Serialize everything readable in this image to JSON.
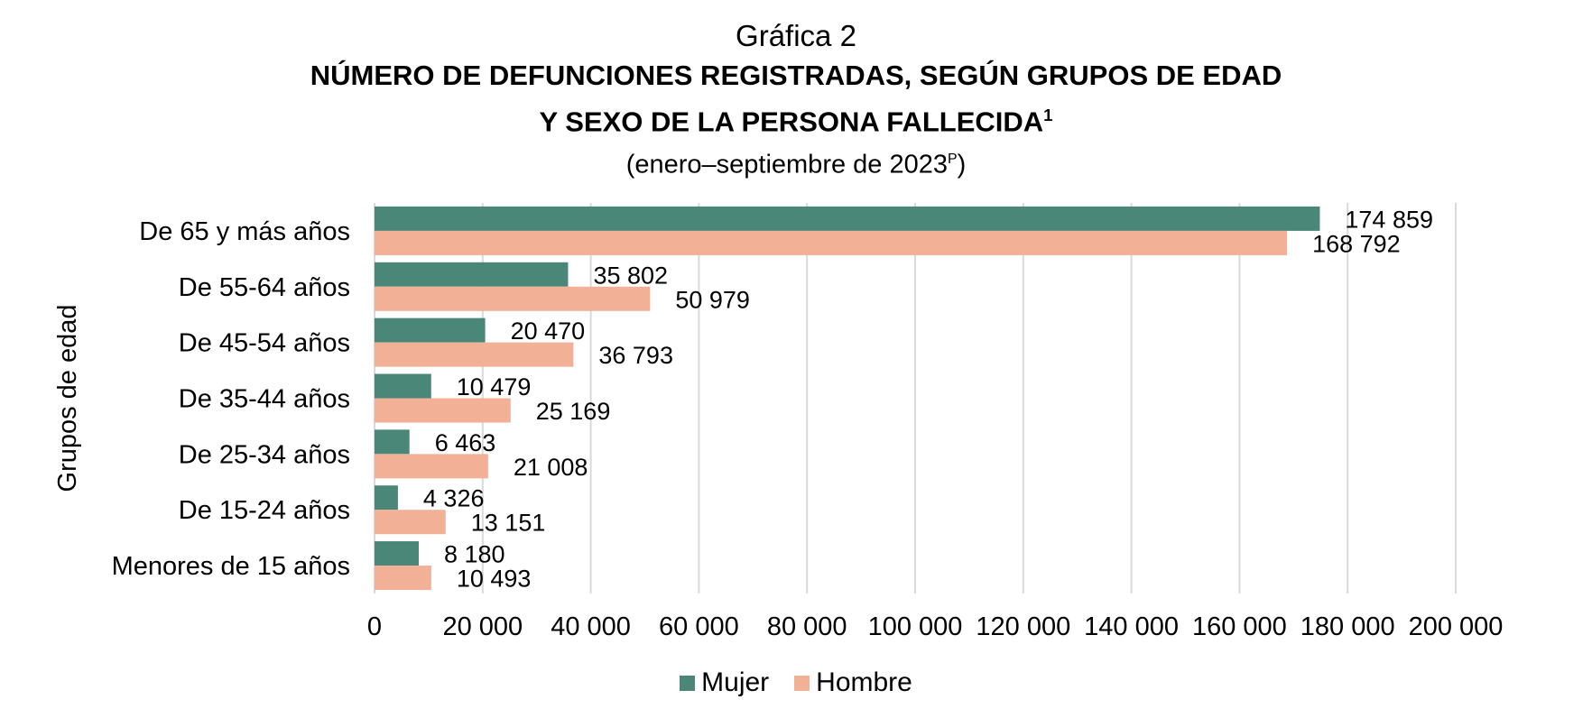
{
  "titles": {
    "label": "Gráfica 2",
    "line1": "Número de defunciones registradas, según grupos de edad",
    "line2": "y sexo de la persona fallecida",
    "line2_sup": "1",
    "period": "(enero–septiembre de 2023",
    "period_sup": "P",
    "period_end": ")"
  },
  "colors": {
    "mujer": "#4a8779",
    "hombre": "#f2b096",
    "grid": "#d9d9d9"
  },
  "chart_data": {
    "type": "bar",
    "orientation": "horizontal",
    "ylabel": "Grupos de edad",
    "xlabel": "",
    "categories": [
      "De 65 y más años",
      "De 55-64 años",
      "De 45-54 años",
      "De 35-44 años",
      "De 25-34 años",
      "De 15-24 años",
      "Menores de 15 años"
    ],
    "series": [
      {
        "name": "Mujer",
        "values": [
          174859,
          35802,
          20470,
          10479,
          6463,
          4326,
          8180
        ],
        "labels": [
          "174 859",
          "35 802",
          "20 470",
          "10 479",
          "6 463",
          "4 326",
          "8 180"
        ]
      },
      {
        "name": "Hombre",
        "values": [
          168792,
          50979,
          36793,
          25169,
          21008,
          13151,
          10493
        ],
        "labels": [
          "168 792",
          "50 979",
          "36 793",
          "25 169",
          "21 008",
          "13 151",
          "10 493"
        ]
      }
    ],
    "xlim": [
      0,
      200000
    ],
    "xticks": [
      0,
      20000,
      40000,
      60000,
      80000,
      100000,
      120000,
      140000,
      160000,
      180000,
      200000
    ],
    "xtick_labels": [
      "0",
      "20 000",
      "40 000",
      "60 000",
      "80 000",
      "100 000",
      "120 000",
      "140 000",
      "160 000",
      "180 000",
      "200 000"
    ],
    "grid": true,
    "legend": "bottom"
  }
}
